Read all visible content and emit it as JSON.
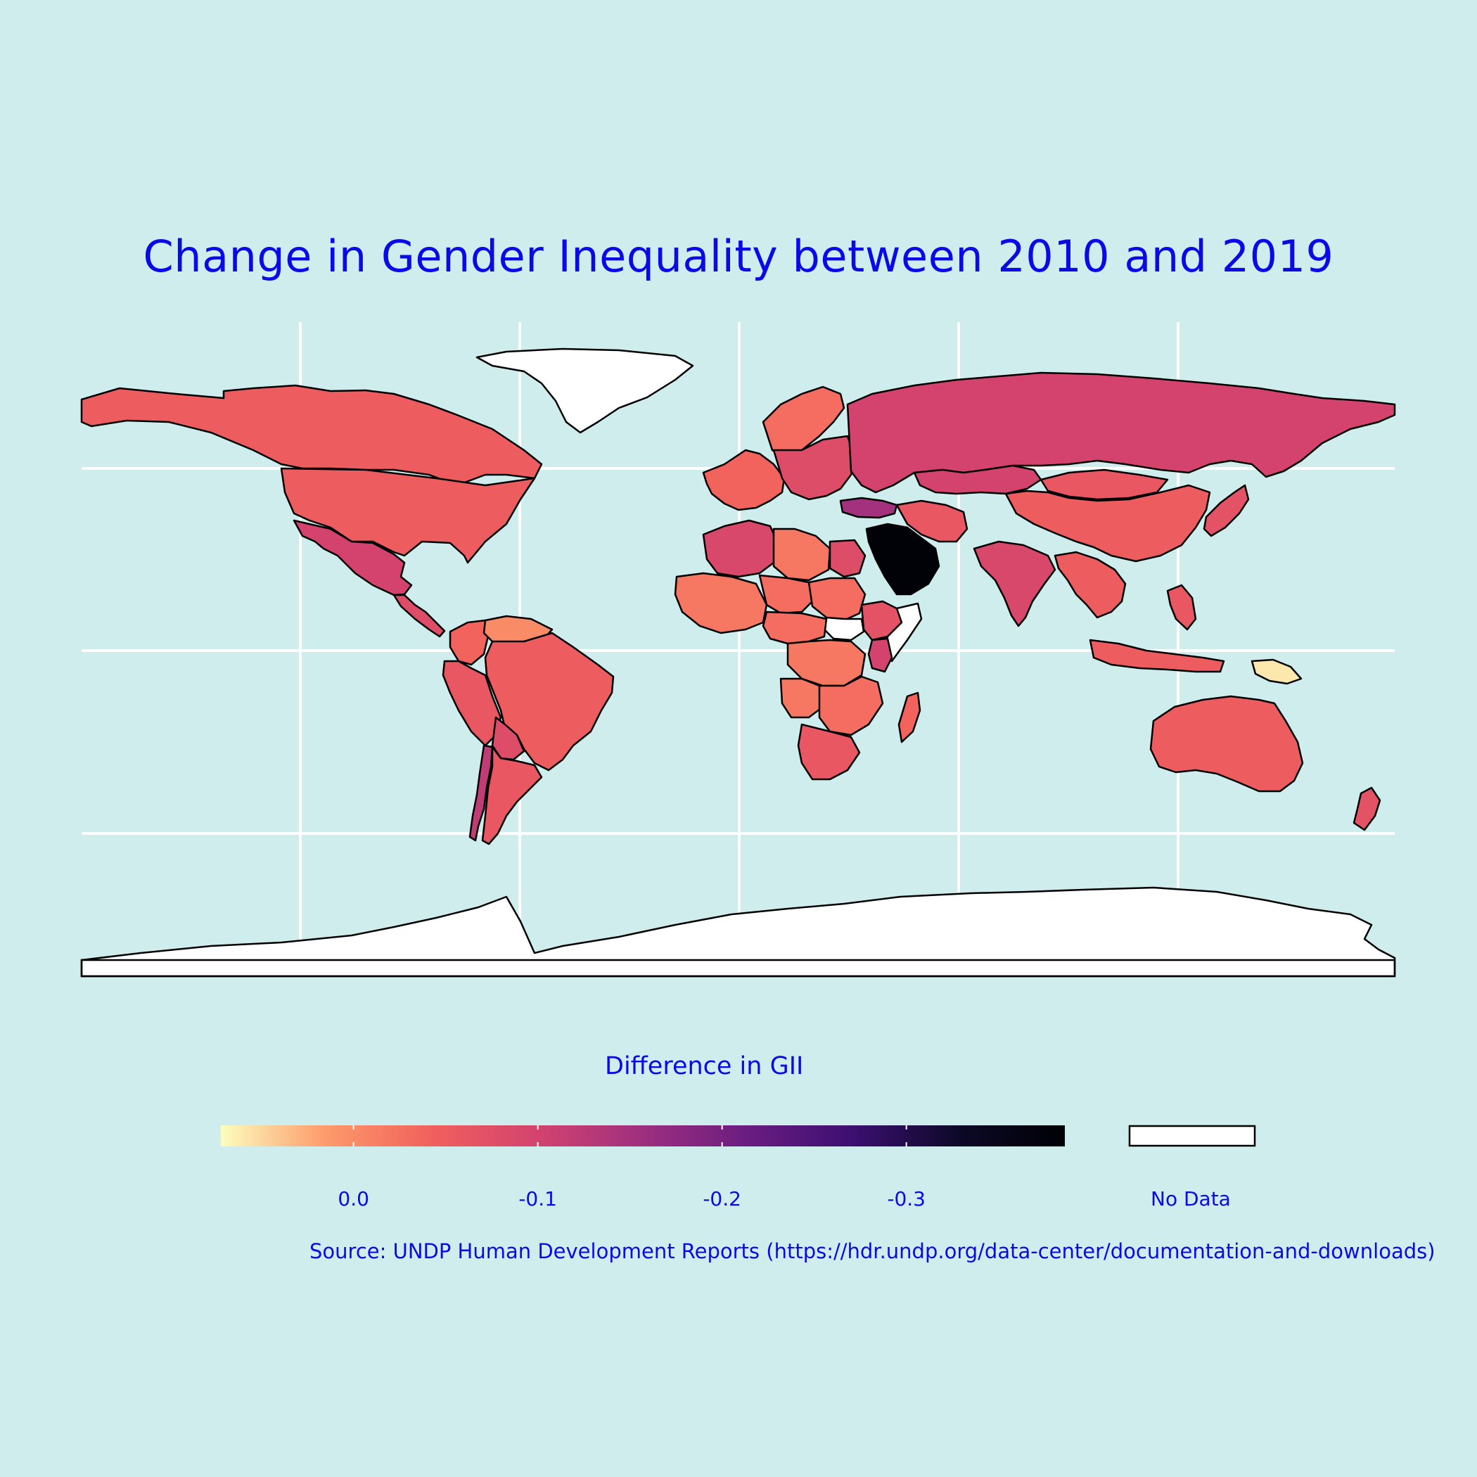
{
  "title": "Change in Gender Inequality between 2010 and 2019",
  "legend": {
    "title": "Difference in GII",
    "ticks": [
      {
        "label": "0.0",
        "value": 0.0
      },
      {
        "label": "-0.1",
        "value": -0.1
      },
      {
        "label": "-0.2",
        "value": -0.2
      },
      {
        "label": "-0.3",
        "value": -0.3
      }
    ],
    "domain": [
      0.072,
      -0.386
    ],
    "gradient": [
      "#fcfdbf",
      "#fd9a6a",
      "#f1605d",
      "#d3436e",
      "#9e2f7f",
      "#6a1c81",
      "#3b0f70",
      "#0c0927",
      "#000004"
    ],
    "nodata_label": "No Data",
    "nodata_color": "#ffffff"
  },
  "source": "Source: UNDP Human Development Reports (https://hdr.undp.org/data-center/documentation-and-downloads)",
  "colors": {
    "background": "#d0eded",
    "text": "#0a0ae6",
    "grid": "#ffffff",
    "border": "#000000"
  },
  "map_data": {
    "type": "choropleth",
    "projection": "equirectangular",
    "regions": [
      {
        "name": "Canada",
        "value": -0.05
      },
      {
        "name": "United States",
        "value": -0.05
      },
      {
        "name": "Mexico",
        "value": -0.1
      },
      {
        "name": "Central America",
        "value": -0.08
      },
      {
        "name": "Brazil",
        "value": -0.05
      },
      {
        "name": "Peru",
        "value": -0.06
      },
      {
        "name": "Bolivia",
        "value": -0.08
      },
      {
        "name": "Chile",
        "value": -0.12
      },
      {
        "name": "Argentina",
        "value": -0.06
      },
      {
        "name": "Venezuela",
        "value": 0.0
      },
      {
        "name": "Colombia",
        "value": -0.04
      },
      {
        "name": "Greenland",
        "value": null
      },
      {
        "name": "Russia",
        "value": -0.1
      },
      {
        "name": "Kazakhstan",
        "value": -0.1
      },
      {
        "name": "China",
        "value": -0.05
      },
      {
        "name": "Mongolia",
        "value": -0.06
      },
      {
        "name": "India",
        "value": -0.09
      },
      {
        "name": "Saudi Arabia",
        "value": -0.38
      },
      {
        "name": "Turkey",
        "value": -0.15
      },
      {
        "name": "Iran",
        "value": -0.06
      },
      {
        "name": "Western Europe",
        "value": -0.04
      },
      {
        "name": "Scandinavia",
        "value": -0.03
      },
      {
        "name": "Eastern Europe",
        "value": -0.08
      },
      {
        "name": "North Africa",
        "value": -0.09
      },
      {
        "name": "Libya",
        "value": -0.02
      },
      {
        "name": "Egypt",
        "value": -0.08
      },
      {
        "name": "Sudan",
        "value": -0.03
      },
      {
        "name": "South Sudan",
        "value": null
      },
      {
        "name": "Ethiopia",
        "value": -0.07
      },
      {
        "name": "Kenya",
        "value": -0.1
      },
      {
        "name": "Somalia",
        "value": null
      },
      {
        "name": "West Africa",
        "value": -0.02
      },
      {
        "name": "Niger",
        "value": -0.03
      },
      {
        "name": "Central Africa",
        "value": -0.03
      },
      {
        "name": "DR Congo",
        "value": -0.02
      },
      {
        "name": "Angola",
        "value": -0.02
      },
      {
        "name": "Southern Africa",
        "value": -0.03
      },
      {
        "name": "South Africa",
        "value": -0.06
      },
      {
        "name": "Madagascar",
        "value": -0.04
      },
      {
        "name": "Southeast Asia",
        "value": -0.05
      },
      {
        "name": "Indonesia",
        "value": -0.05
      },
      {
        "name": "Philippines",
        "value": -0.06
      },
      {
        "name": "Japan",
        "value": -0.07
      },
      {
        "name": "Papua New Guinea",
        "value": 0.06
      },
      {
        "name": "Australia",
        "value": -0.05
      },
      {
        "name": "New Zealand",
        "value": -0.07
      },
      {
        "name": "Antarctica",
        "value": null
      }
    ]
  }
}
